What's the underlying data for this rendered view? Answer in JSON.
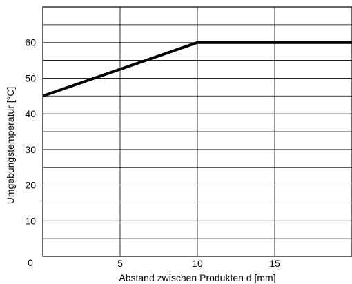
{
  "chart_data": {
    "type": "line",
    "xlabel": "Abstand zwischen Produkten d [mm]",
    "ylabel": "Umgebungstemperatur [°C]",
    "xlim": [
      0,
      20
    ],
    "ylim": [
      0,
      70
    ],
    "x_ticks": [
      5,
      10,
      15
    ],
    "y_ticks": [
      10,
      20,
      30,
      40,
      50,
      60
    ],
    "origin_label": "0",
    "grid": true,
    "series": [
      {
        "x": [
          0,
          10,
          20
        ],
        "y": [
          45,
          60,
          60
        ],
        "color": "#000000"
      }
    ]
  }
}
